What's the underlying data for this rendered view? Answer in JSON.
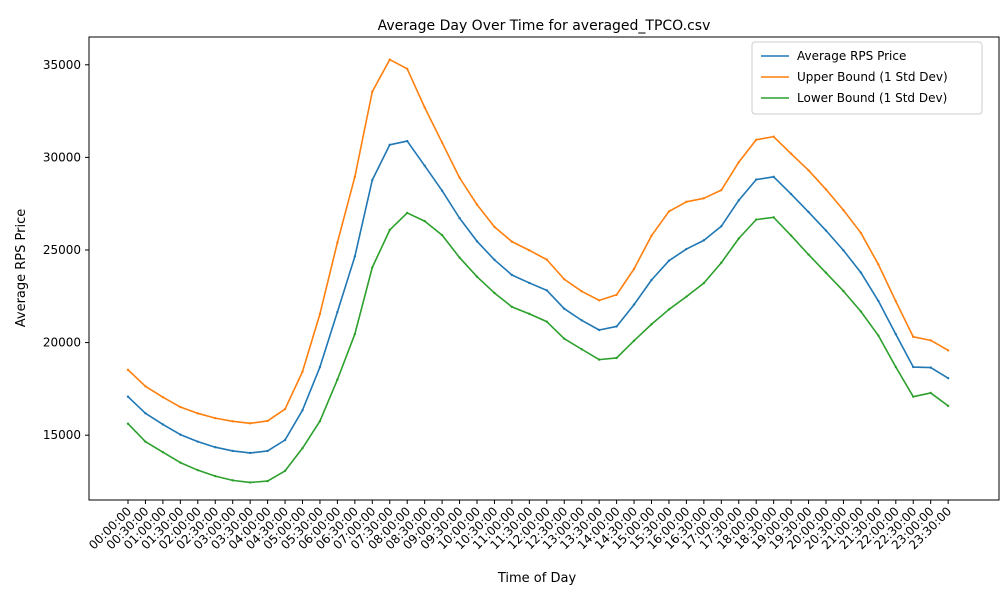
{
  "chart_data": {
    "type": "line",
    "title": "Average Day Over Time for averaged_TPCO.csv",
    "xlabel": "Time of Day",
    "ylabel": "Average RPS Price",
    "ylim": [
      11500,
      36500
    ],
    "yticks": [
      15000,
      20000,
      25000,
      30000,
      35000
    ],
    "grid": false,
    "legend_position": "top-right",
    "categories": [
      "00:00:00",
      "00:30:00",
      "01:00:00",
      "01:30:00",
      "02:00:00",
      "02:30:00",
      "03:00:00",
      "03:30:00",
      "04:00:00",
      "04:30:00",
      "05:00:00",
      "05:30:00",
      "06:00:00",
      "06:30:00",
      "07:00:00",
      "07:30:00",
      "08:00:00",
      "08:30:00",
      "09:00:00",
      "09:30:00",
      "10:00:00",
      "10:30:00",
      "11:00:00",
      "11:30:00",
      "12:00:00",
      "12:30:00",
      "13:00:00",
      "13:30:00",
      "14:00:00",
      "14:30:00",
      "15:00:00",
      "15:30:00",
      "16:00:00",
      "16:30:00",
      "17:00:00",
      "17:30:00",
      "18:00:00",
      "18:30:00",
      "19:00:00",
      "19:30:00",
      "20:00:00",
      "20:30:00",
      "21:00:00",
      "21:30:00",
      "22:00:00",
      "22:30:00",
      "23:00:00",
      "23:30:00"
    ],
    "series": [
      {
        "name": "Average RPS Price",
        "color": "#1f77b4",
        "values": [
          17080,
          16180,
          15580,
          15030,
          14650,
          14350,
          14150,
          14040,
          14150,
          14740,
          16350,
          18680,
          21650,
          24650,
          28780,
          30680,
          30880,
          29550,
          28200,
          26720,
          25470,
          24470,
          23650,
          23220,
          22820,
          21830,
          21200,
          20680,
          20870,
          22050,
          23380,
          24420,
          25050,
          25520,
          26280,
          27680,
          28800,
          28950,
          28020,
          27050,
          26050,
          24980,
          23780,
          22250,
          20450,
          18680,
          18650,
          18080
        ]
      },
      {
        "name": "Upper Bound (1 Std Dev)",
        "color": "#ff7f0e",
        "values": [
          18530,
          17640,
          17050,
          16520,
          16180,
          15920,
          15750,
          15640,
          15770,
          16410,
          18430,
          21550,
          25400,
          28950,
          33550,
          35280,
          34780,
          32700,
          30800,
          28900,
          27450,
          26250,
          25450,
          24980,
          24480,
          23420,
          22770,
          22280,
          22580,
          23980,
          25770,
          27080,
          27600,
          27790,
          28230,
          29740,
          30950,
          31120,
          30200,
          29300,
          28270,
          27150,
          25920,
          24220,
          22230,
          20310,
          20120,
          19580
        ]
      },
      {
        "name": "Lower Bound (1 Std Dev)",
        "color": "#2ca02c",
        "values": [
          15620,
          14650,
          14080,
          13520,
          13110,
          12790,
          12560,
          12450,
          12520,
          13070,
          14300,
          15760,
          18000,
          20460,
          24060,
          26080,
          27000,
          26560,
          25800,
          24590,
          23560,
          22680,
          21930,
          21550,
          21130,
          20210,
          19640,
          19080,
          19170,
          20100,
          20990,
          21790,
          22480,
          23210,
          24310,
          25620,
          26640,
          26760,
          25780,
          24750,
          23770,
          22780,
          21680,
          20380,
          18680,
          17080,
          17280,
          16580
        ]
      }
    ]
  }
}
